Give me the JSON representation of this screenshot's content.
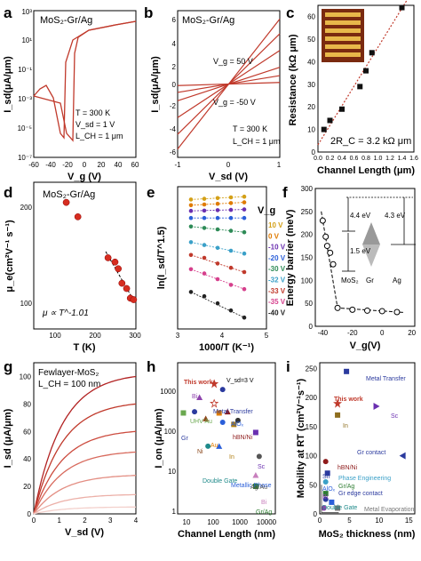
{
  "panels": {
    "a": {
      "letter": "a",
      "title": "MoS₂-Gr/Ag",
      "ylabel": "I_sd(μA/μm)",
      "xlabel": "V_g (V)",
      "xticks": [
        "-60",
        "-40",
        "-20",
        "0",
        "20",
        "40",
        "60"
      ],
      "yticks": [
        "10⁻⁷",
        "10⁻⁵",
        "10⁻³",
        "10⁻¹",
        "10¹",
        "10³"
      ],
      "notes": [
        "T = 300 K",
        "V_sd = 1 V",
        "L_CH = 1 μm"
      ]
    },
    "b": {
      "letter": "b",
      "title": "MoS₂-Gr/Ag",
      "ylabel": "I_sd(μA/μm)",
      "xlabel": "V_sd (V)",
      "xticks": [
        "-1",
        "0",
        "1"
      ],
      "yticks": [
        "6",
        "4",
        "2",
        "0",
        "-2",
        "-4",
        "-6"
      ],
      "notes": [
        "V_g = 50 V",
        "V_g = -50 V",
        "T = 300 K",
        "L_CH = 1 μm"
      ]
    },
    "c": {
      "letter": "c",
      "ylabel": "Resistance (kΩ μm)",
      "xlabel": "Channel Length (μm)",
      "xticks": [
        "0.0",
        "0.2",
        "0.4",
        "0.6",
        "0.8",
        "1.0",
        "1.2",
        "1.4",
        "1.6"
      ],
      "yticks": [
        "0",
        "10",
        "20",
        "30",
        "40",
        "50",
        "60"
      ],
      "note": "2R_C = 3.2 kΩ μm"
    },
    "d": {
      "letter": "d",
      "title": "MoS₂-Gr/Ag",
      "ylabel": "μ_e(cm²V⁻¹ s⁻¹)",
      "xlabel": "T (K)",
      "xticks": [
        "100",
        "200",
        "300"
      ],
      "yticks": [
        "100",
        "200"
      ],
      "note": "μ ∝ T^-1.01"
    },
    "e": {
      "letter": "e",
      "ylabel": "ln(I_sd/T^1.5)",
      "xlabel": "1000/T (K⁻¹)",
      "legend_title": "V_g",
      "xticks": [
        "3",
        "4",
        "5"
      ],
      "legend": [
        "10 V",
        "0 V",
        "-10 V",
        "-20 V",
        "-30 V",
        "-32 V",
        "-33 V",
        "-35 V",
        "-40 V"
      ],
      "legend_colors": [
        "#d4a017",
        "#e07b00",
        "#6a2fb0",
        "#2b5fd9",
        "#2e8b57",
        "#3aa0c8",
        "#c0392b",
        "#d63f8c",
        "#222222"
      ]
    },
    "f": {
      "letter": "f",
      "ylabel": "Energy barrier (meV)",
      "xlabel": "V_g(V)",
      "xticks": [
        "-40",
        "-20",
        "0",
        "20"
      ],
      "yticks": [
        "0",
        "50",
        "100",
        "150",
        "200",
        "250",
        "300"
      ],
      "inset": [
        "4.4 eV",
        "1.5 eV",
        "4.3 eV",
        "MoS₂",
        "Gr",
        "Ag"
      ]
    },
    "g": {
      "letter": "g",
      "title": "Fewlayer-MoS₂",
      "note": "L_CH = 100 nm",
      "ylabel": "I_sd (μA/μm)",
      "xlabel": "V_sd (V)",
      "xticks": [
        "0",
        "1",
        "2",
        "3",
        "4"
      ],
      "yticks": [
        "0",
        "20",
        "40",
        "60",
        "80",
        "100"
      ]
    },
    "h": {
      "letter": "h",
      "ylabel": "I_on (μA/μm)",
      "xlabel": "Channel Length (nm)",
      "xticks": [
        "10",
        "100",
        "1000",
        "10000"
      ],
      "yticks": [
        "1",
        "10",
        "100",
        "1000"
      ],
      "labels": [
        "This work",
        "V_sd=3 V",
        "Metal Transfer",
        "Bi",
        "UHV Au",
        "Gr",
        "Ni",
        "Au",
        "AlOₓ",
        "hBN/Ni",
        "In",
        "Double Gate",
        "Metallic Phase",
        "Sc",
        "Ag/Au",
        "Bi",
        "Gr/Ag"
      ]
    },
    "i": {
      "letter": "i",
      "ylabel": "Mobility at RT (cm²V⁻¹s⁻¹)",
      "xlabel": "MoS₂ thickness (nm)",
      "xticks": [
        "0",
        "5",
        "10",
        "15"
      ],
      "yticks": [
        "0",
        "50",
        "100",
        "150",
        "200",
        "250"
      ],
      "labels": [
        "Metal Transfer",
        "This work",
        "In",
        "Sc",
        "Gr contact",
        "hBN/Ni",
        "Sn",
        "Phase Engineering",
        "Gr/Ag",
        "Gr edge contact",
        "AlOₓ",
        "Bi",
        "Double Gate",
        "Metal Evaporation"
      ]
    }
  },
  "chart_data": [
    {
      "type": "line",
      "panel": "a",
      "ylog": true,
      "xlim": [
        -60,
        60
      ],
      "ylim": [
        1e-07,
        1000.0
      ],
      "series": [
        {
          "x": [
            -60,
            -40,
            -35,
            -30,
            -28,
            -25,
            -20,
            -10,
            0,
            20,
            40,
            60
          ],
          "y": [
            3e-05,
            2e-05,
            1e-05,
            2e-05,
            0.01,
            0.1,
            0.5,
            2,
            5,
            20,
            50,
            100
          ]
        },
        {
          "x": [
            -60,
            -55,
            -50,
            -45,
            -40,
            -35,
            -30,
            -20,
            0,
            20,
            40,
            60
          ],
          "y": [
            3e-05,
            0.0001,
            0.0003,
            5e-05,
            1e-05,
            0.01,
            0.3,
            1,
            5,
            20,
            50,
            100
          ]
        }
      ]
    },
    {
      "type": "line",
      "panel": "b",
      "xlim": [
        -1,
        1
      ],
      "ylim": [
        -7,
        7
      ],
      "series": [
        {
          "x": [
            -1,
            1
          ],
          "y": [
            -6.2,
            6.2
          ]
        },
        {
          "x": [
            -1,
            1
          ],
          "y": [
            -4.8,
            4.8
          ]
        },
        {
          "x": [
            -1,
            1
          ],
          "y": [
            -3.2,
            3.2
          ]
        },
        {
          "x": [
            -1,
            1
          ],
          "y": [
            -1.6,
            1.6
          ]
        },
        {
          "x": [
            -1,
            1
          ],
          "y": [
            -0.8,
            0.8
          ]
        },
        {
          "x": [
            -1,
            1
          ],
          "y": [
            -0.15,
            0.15
          ]
        }
      ]
    },
    {
      "type": "scatter",
      "panel": "c",
      "xlim": [
        0,
        1.6
      ],
      "ylim": [
        0,
        65
      ],
      "x": [
        0.1,
        0.2,
        0.4,
        0.7,
        0.8,
        0.9,
        1.4
      ],
      "y": [
        10,
        14,
        19,
        29,
        36,
        44,
        64
      ],
      "fit": {
        "x": [
          0,
          1.5
        ],
        "y": [
          3.2,
          68
        ]
      }
    },
    {
      "type": "scatter",
      "panel": "d",
      "ylog": true,
      "xlim": [
        80,
        300
      ],
      "ylim": [
        70,
        220
      ],
      "x": [
        150,
        175,
        240,
        255,
        262,
        270,
        280,
        288,
        295
      ],
      "y": [
        188,
        168,
        122,
        118,
        112,
        100,
        96,
        89,
        88
      ]
    },
    {
      "type": "scatter",
      "panel": "e",
      "xlim": [
        3,
        5
      ],
      "ylim": [
        0,
        10
      ],
      "series": [
        {
          "name": "10 V",
          "x": [
            3.3,
            3.6,
            3.9,
            4.2,
            4.5
          ],
          "y": [
            9.1,
            9.15,
            9.2,
            9.25,
            9.3
          ]
        },
        {
          "name": "0 V",
          "x": [
            3.3,
            3.6,
            3.9,
            4.2,
            4.5
          ],
          "y": [
            8.7,
            8.75,
            8.8,
            8.85,
            8.9
          ]
        },
        {
          "name": "-10 V",
          "x": [
            3.3,
            3.6,
            3.9,
            4.2,
            4.5
          ],
          "y": [
            8.3,
            8.32,
            8.35,
            8.37,
            8.4
          ]
        },
        {
          "name": "-20 V",
          "x": [
            3.3,
            3.6,
            3.9,
            4.2,
            4.5
          ],
          "y": [
            7.8,
            7.8,
            7.8,
            7.8,
            7.8
          ]
        },
        {
          "name": "-30 V",
          "x": [
            3.3,
            3.6,
            3.9,
            4.2,
            4.5
          ],
          "y": [
            7.2,
            7.1,
            7.0,
            6.9,
            6.8
          ]
        },
        {
          "name": "-32 V",
          "x": [
            3.3,
            3.6,
            3.9,
            4.2,
            4.5
          ],
          "y": [
            6.1,
            5.9,
            5.7,
            5.5,
            5.3
          ]
        },
        {
          "name": "-33 V",
          "x": [
            3.3,
            3.6,
            3.9,
            4.2,
            4.5
          ],
          "y": [
            5.2,
            5.0,
            4.6,
            4.3,
            4.0
          ]
        },
        {
          "name": "-35 V",
          "x": [
            3.3,
            3.6,
            3.9,
            4.2,
            4.5
          ],
          "y": [
            4.2,
            3.9,
            3.5,
            3.1,
            2.8
          ]
        },
        {
          "name": "-40 V",
          "x": [
            3.3,
            3.6,
            3.9,
            4.2,
            4.5
          ],
          "y": [
            2.6,
            2.3,
            1.8,
            1.3,
            0.8
          ]
        }
      ]
    },
    {
      "type": "scatter",
      "panel": "f",
      "xlim": [
        -45,
        22
      ],
      "ylim": [
        0,
        300
      ],
      "x": [
        -40,
        -38,
        -37,
        -35,
        -33,
        -30,
        -20,
        -10,
        0,
        10
      ],
      "y": [
        230,
        195,
        175,
        160,
        135,
        40,
        36,
        34,
        33,
        31
      ]
    },
    {
      "type": "line",
      "panel": "g",
      "xlim": [
        0,
        4
      ],
      "ylim": [
        0,
        110
      ],
      "series": [
        {
          "y_end": 100
        },
        {
          "y_end": 80
        },
        {
          "y_end": 60
        },
        {
          "y_end": 45
        },
        {
          "y_end": 28
        },
        {
          "y_end": 14
        },
        {
          "y_end": 5
        }
      ]
    },
    {
      "type": "scatter",
      "panel": "h",
      "xlog": true,
      "ylog": true,
      "xlim": [
        5,
        15000
      ],
      "ylim": [
        1,
        2000
      ],
      "points": [
        {
          "x": 100,
          "y": 700
        },
        {
          "x": 100,
          "y": 260
        },
        {
          "x": 200,
          "y": 520
        },
        {
          "x": 30,
          "y": 350
        },
        {
          "x": 8,
          "y": 160
        },
        {
          "x": 20,
          "y": 170
        },
        {
          "x": 50,
          "y": 120
        },
        {
          "x": 150,
          "y": 160
        },
        {
          "x": 200,
          "y": 100
        },
        {
          "x": 300,
          "y": 170
        },
        {
          "x": 500,
          "y": 90
        },
        {
          "x": 60,
          "y": 30
        },
        {
          "x": 150,
          "y": 30
        },
        {
          "x": 3000,
          "y": 60
        },
        {
          "x": 4000,
          "y": 18
        },
        {
          "x": 3000,
          "y": 7
        },
        {
          "x": 3000,
          "y": 4
        },
        {
          "x": 700,
          "y": 110
        }
      ]
    },
    {
      "type": "scatter",
      "panel": "i",
      "xlim": [
        0,
        16
      ],
      "ylim": [
        0,
        260
      ],
      "points": [
        {
          "x": 4.5,
          "y": 245
        },
        {
          "x": 3,
          "y": 190
        },
        {
          "x": 3,
          "y": 170
        },
        {
          "x": 9.5,
          "y": 185
        },
        {
          "x": 14,
          "y": 100
        },
        {
          "x": 1,
          "y": 90
        },
        {
          "x": 1.3,
          "y": 70
        },
        {
          "x": 1,
          "y": 55
        },
        {
          "x": 1,
          "y": 35
        },
        {
          "x": 1,
          "y": 25
        },
        {
          "x": 2,
          "y": 20
        },
        {
          "x": 0.7,
          "y": 10
        },
        {
          "x": 3,
          "y": 10
        }
      ]
    }
  ]
}
